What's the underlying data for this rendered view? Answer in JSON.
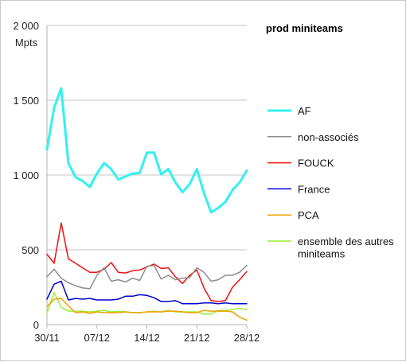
{
  "chart_data": {
    "type": "line",
    "title": "prod miniteams",
    "ylabel": "Mpts",
    "xlabel": "",
    "ylim": [
      0,
      2000
    ],
    "yticks": [
      0,
      500,
      1000,
      1500,
      2000
    ],
    "ytick_labels": [
      "0",
      "500",
      "1 000",
      "1 500",
      "2 000"
    ],
    "x_tick_labels": [
      "30/11",
      "07/12",
      "14/12",
      "21/12",
      "28/12"
    ],
    "x_tick_days": [
      0,
      7,
      14,
      21,
      28
    ],
    "x": [
      0,
      1,
      2,
      3,
      4,
      5,
      6,
      7,
      8,
      9,
      10,
      11,
      12,
      13,
      14,
      15,
      16,
      17,
      18,
      19,
      20,
      21,
      22,
      23,
      24,
      25,
      26,
      27,
      28
    ],
    "grid": "horizontal",
    "legend_position": "right",
    "series": [
      {
        "name": "AF",
        "color": "#33f0f0",
        "width": 3,
        "values": [
          1170,
          1450,
          1580,
          1080,
          985,
          960,
          920,
          1010,
          1080,
          1040,
          970,
          990,
          1010,
          1015,
          1150,
          1150,
          1005,
          1040,
          950,
          885,
          940,
          1040,
          880,
          750,
          780,
          820,
          900,
          950,
          1030
        ]
      },
      {
        "name": "non-associés",
        "color": "#8c8c8c",
        "width": 1.5,
        "values": [
          320,
          370,
          310,
          280,
          260,
          245,
          240,
          330,
          380,
          290,
          300,
          285,
          310,
          295,
          390,
          395,
          305,
          330,
          300,
          310,
          315,
          380,
          350,
          290,
          300,
          330,
          330,
          350,
          395
        ]
      },
      {
        "name": "FOUCK",
        "color": "#ee1111",
        "width": 1.5,
        "values": [
          470,
          410,
          680,
          440,
          410,
          380,
          350,
          350,
          370,
          415,
          350,
          345,
          360,
          365,
          385,
          405,
          375,
          380,
          320,
          275,
          330,
          365,
          245,
          160,
          155,
          160,
          250,
          300,
          355
        ]
      },
      {
        "name": "France",
        "color": "#0000cc",
        "width": 1.5,
        "values": [
          170,
          270,
          290,
          165,
          175,
          170,
          175,
          165,
          165,
          165,
          170,
          190,
          190,
          200,
          195,
          180,
          155,
          155,
          160,
          140,
          140,
          140,
          145,
          145,
          140,
          145,
          140,
          140,
          140
        ]
      },
      {
        "name": "PCA",
        "color": "#f0a000",
        "width": 1.5,
        "values": [
          120,
          170,
          175,
          125,
          80,
          85,
          75,
          85,
          80,
          80,
          80,
          85,
          80,
          80,
          85,
          85,
          85,
          90,
          90,
          85,
          80,
          80,
          95,
          90,
          90,
          90,
          85,
          50,
          30
        ]
      },
      {
        "name": "ensemble des autres miniteams",
        "color": "#99ee33",
        "width": 1.5,
        "values": [
          80,
          215,
          115,
          90,
          90,
          90,
          85,
          90,
          95,
          85,
          90,
          85,
          80,
          80,
          85,
          90,
          85,
          95,
          85,
          85,
          85,
          85,
          70,
          70,
          95,
          95,
          100,
          110,
          100
        ]
      }
    ],
    "legend": [
      {
        "lines": [
          "AF"
        ]
      },
      {
        "lines": [
          "non-associés"
        ]
      },
      {
        "lines": [
          "FOUCK"
        ]
      },
      {
        "lines": [
          "France"
        ]
      },
      {
        "lines": [
          "PCA"
        ]
      },
      {
        "lines": [
          "ensemble des autres",
          "miniteams"
        ]
      }
    ]
  }
}
